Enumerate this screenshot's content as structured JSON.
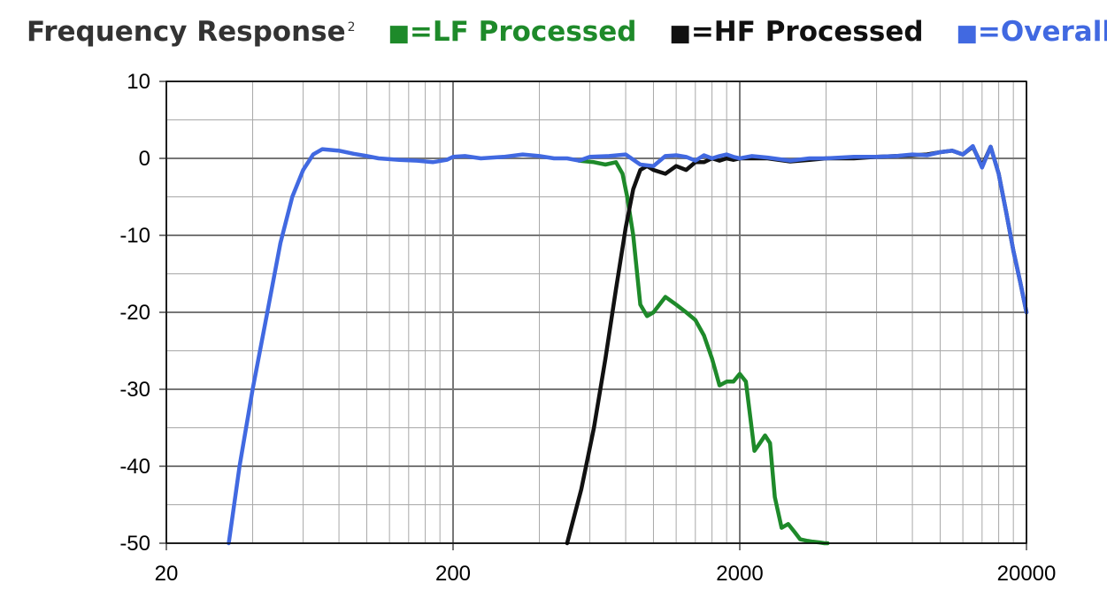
{
  "chart_data": {
    "type": "line",
    "title": "Frequency Response",
    "title_superscript": "2",
    "xscale": "log",
    "xlim": [
      20,
      20000
    ],
    "ylim": [
      -50,
      10
    ],
    "x_ticks": [
      20,
      200,
      2000,
      20000
    ],
    "x_tick_labels": [
      "20",
      "200",
      "2000",
      "20000"
    ],
    "y_ticks": [
      10,
      0,
      -10,
      -20,
      -30,
      -40,
      -50
    ],
    "y_tick_labels": [
      "10",
      "0",
      "-10",
      "-20",
      "-30",
      "-40",
      "-50"
    ],
    "grid": true,
    "legend_placement": "top",
    "series": [
      {
        "name": "=LF Processed",
        "color": "#1e8a2a",
        "x": [
          550,
          620,
          680,
          740,
          780,
          810,
          850,
          900,
          950,
          1000,
          1100,
          1200,
          1300,
          1400,
          1500,
          1600,
          1700,
          1800,
          1900,
          2000,
          2100,
          2250,
          2350,
          2450,
          2550,
          2650,
          2800,
          2950,
          3100,
          3250,
          3450,
          3600,
          3800,
          3950,
          4050
        ],
        "y": [
          -0.3,
          -0.5,
          -0.8,
          -0.5,
          -2,
          -5,
          -10,
          -19,
          -20.5,
          -20,
          -18,
          -19,
          -20,
          -21,
          -23,
          -26,
          -29.5,
          -29,
          -29,
          -28,
          -29,
          -38,
          -37,
          -36,
          -37,
          -44,
          -48,
          -47.5,
          -48.5,
          -49.5,
          -49.7,
          -49.8,
          -49.9,
          -50,
          -50
        ]
      },
      {
        "name": "=HF Processed",
        "color": "#111111",
        "x": [
          500,
          560,
          620,
          680,
          740,
          800,
          850,
          900,
          950,
          1000,
          1100,
          1200,
          1300,
          1400,
          1500,
          1600,
          1700,
          1800,
          1900,
          2000,
          2200,
          2500,
          3000,
          3500,
          4000,
          5000,
          6000,
          7000,
          8000,
          9000,
          10000,
          11000,
          12000,
          13000,
          14000,
          15000,
          16000,
          17000,
          18000,
          19000,
          20000
        ],
        "y": [
          -50,
          -43,
          -35,
          -26,
          -17,
          -9,
          -4,
          -1.5,
          -1,
          -1.5,
          -2,
          -1,
          -1.5,
          -0.5,
          -0.5,
          0,
          -0.3,
          0,
          -0.2,
          0,
          0,
          0,
          -0.4,
          -0.2,
          0,
          0,
          0.2,
          0.3,
          0.4,
          0.5,
          0.8,
          1,
          0.5,
          1.5,
          -1,
          1.5,
          -2,
          -7,
          -12,
          -16,
          -20
        ]
      },
      {
        "name": "=Overall",
        "color": "#4169e1",
        "x": [
          33,
          36,
          40,
          45,
          50,
          55,
          60,
          65,
          70,
          80,
          90,
          100,
          110,
          120,
          130,
          150,
          170,
          190,
          200,
          220,
          250,
          300,
          350,
          400,
          450,
          500,
          550,
          600,
          700,
          800,
          900,
          1000,
          1100,
          1200,
          1300,
          1400,
          1500,
          1600,
          1700,
          1800,
          1900,
          2000,
          2200,
          2500,
          3000,
          3500,
          4000,
          5000,
          6000,
          7000,
          8000,
          9000,
          10000,
          11000,
          12000,
          13000,
          14000,
          15000,
          16000,
          17000,
          18000,
          19000,
          20000
        ],
        "y": [
          -50,
          -40,
          -30,
          -20,
          -11,
          -5,
          -1.5,
          0.5,
          1.2,
          1,
          0.6,
          0.3,
          0,
          -0.1,
          -0.2,
          -0.3,
          -0.5,
          -0.2,
          0.2,
          0.3,
          0,
          0.2,
          0.5,
          0.3,
          0,
          0,
          -0.3,
          0.2,
          0.3,
          0.5,
          -0.8,
          -1,
          0.3,
          0.4,
          0.2,
          -0.3,
          0.4,
          0,
          0.3,
          0.5,
          0.2,
          0,
          0.3,
          0.1,
          -0.3,
          0,
          0,
          0.2,
          0.2,
          0.3,
          0.5,
          0.4,
          0.8,
          1,
          0.5,
          1.6,
          -1.2,
          1.5,
          -2,
          -7,
          -12,
          -16,
          -20
        ]
      }
    ]
  },
  "legend_swatch": "■"
}
